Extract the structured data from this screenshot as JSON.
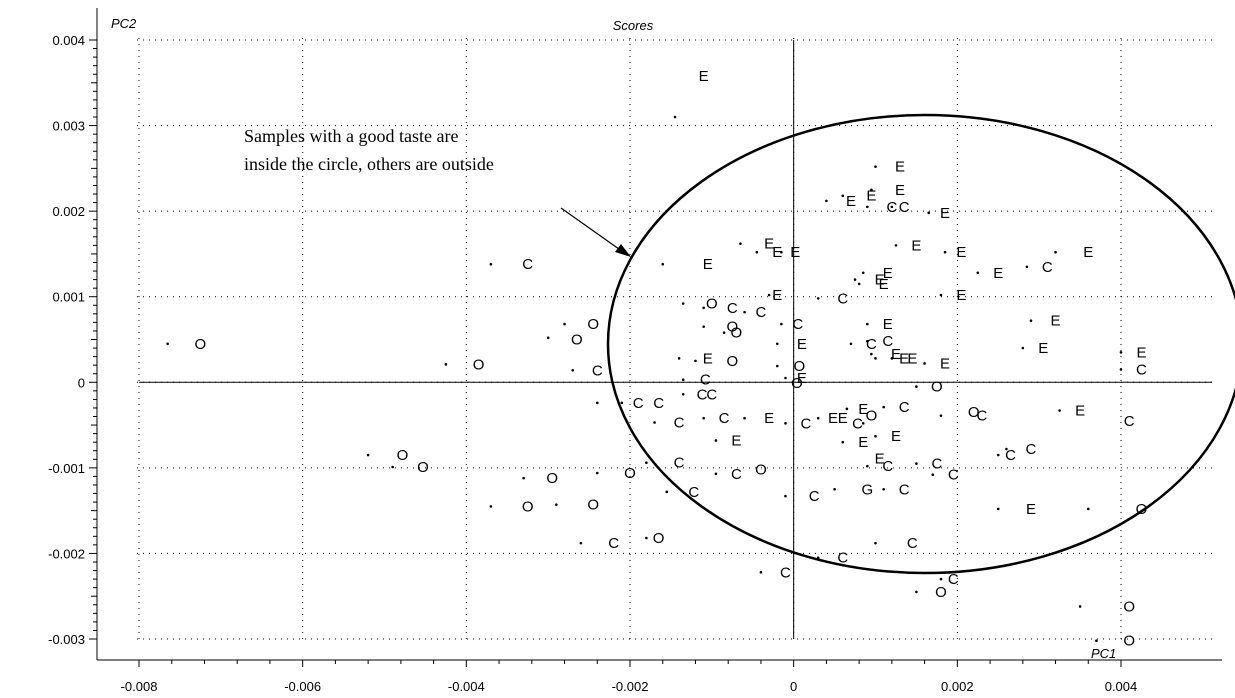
{
  "chart_data": {
    "type": "scatter",
    "title": "Scores",
    "xlabel": "PC1",
    "ylabel": "PC2",
    "xlim": [
      -0.0085,
      0.0045
    ],
    "ylim": [
      -0.0031,
      0.0041
    ],
    "xticks": [
      -0.008,
      -0.006,
      -0.004,
      -0.002,
      0,
      0.002,
      0.004
    ],
    "xtick_labels": [
      "-0.008",
      "-0.006",
      "-0.004",
      "-0.002",
      "0",
      "0.002",
      "0.004"
    ],
    "yticks": [
      -0.003,
      -0.002,
      -0.001,
      0,
      0.001,
      0.002,
      0.003,
      0.004
    ],
    "ytick_labels": [
      "-0.003",
      "-0.002",
      "-0.001",
      "0",
      "0.001",
      "0.002",
      "0.003",
      "0.004"
    ],
    "grid": "dotted",
    "annotation": {
      "lines": [
        "Samples with a good taste are",
        "inside the circle, others are outside"
      ]
    },
    "points": [
      {
        "x": -0.00725,
        "y": 0.00045,
        "label": "O"
      },
      {
        "x": -0.00385,
        "y": 0.00021,
        "label": "O"
      },
      {
        "x": -0.00325,
        "y": 0.00138,
        "label": "C"
      },
      {
        "x": -0.00265,
        "y": 0.0005,
        "label": "O"
      },
      {
        "x": -0.00245,
        "y": 0.00068,
        "label": "O"
      },
      {
        "x": -0.0024,
        "y": 0.00014,
        "label": "C"
      },
      {
        "x": -0.00478,
        "y": -0.00085,
        "label": "O"
      },
      {
        "x": -0.00453,
        "y": -0.00099,
        "label": "O"
      },
      {
        "x": -0.00295,
        "y": -0.00112,
        "label": "O"
      },
      {
        "x": -0.00325,
        "y": -0.00145,
        "label": "O"
      },
      {
        "x": -0.00245,
        "y": -0.00143,
        "label": "O"
      },
      {
        "x": -0.0022,
        "y": -0.00188,
        "label": "C"
      },
      {
        "x": -0.00165,
        "y": -0.00182,
        "label": "O"
      },
      {
        "x": -0.002,
        "y": -0.00106,
        "label": "O"
      },
      {
        "x": -0.0014,
        "y": -0.00094,
        "label": "C"
      },
      {
        "x": -0.00122,
        "y": -0.00128,
        "label": "C"
      },
      {
        "x": -0.0019,
        "y": -0.00024,
        "label": "C"
      },
      {
        "x": -0.00165,
        "y": -0.00024,
        "label": "C"
      },
      {
        "x": -0.0014,
        "y": -0.00047,
        "label": "C"
      },
      {
        "x": -0.00112,
        "y": -0.00014,
        "label": "C"
      },
      {
        "x": -0.001,
        "y": -0.00014,
        "label": "C"
      },
      {
        "x": -0.00105,
        "y": 0.00028,
        "label": "E"
      },
      {
        "x": -0.00075,
        "y": 0.00025,
        "label": "O"
      },
      {
        "x": -0.00108,
        "y": 3e-05,
        "label": "C"
      },
      {
        "x": -0.001,
        "y": 0.00092,
        "label": "O"
      },
      {
        "x": -0.00075,
        "y": 0.00087,
        "label": "C"
      },
      {
        "x": -0.00075,
        "y": 0.00065,
        "label": "O"
      },
      {
        "x": -0.0007,
        "y": 0.00058,
        "label": "O"
      },
      {
        "x": -0.0004,
        "y": 0.00082,
        "label": "C"
      },
      {
        "x": -0.0002,
        "y": 0.00102,
        "label": "E"
      },
      {
        "x": 5e-05,
        "y": 0.00068,
        "label": "C"
      },
      {
        "x": 0.0006,
        "y": 0.00098,
        "label": "C"
      },
      {
        "x": -0.0011,
        "y": 0.00358,
        "label": "E"
      },
      {
        "x": -0.00105,
        "y": 0.00138,
        "label": "E"
      },
      {
        "x": -0.0003,
        "y": 0.00162,
        "label": "E"
      },
      {
        "x": -0.0002,
        "y": 0.00152,
        "label": "E"
      },
      {
        "x": 2e-05,
        "y": 0.00152,
        "label": "E"
      },
      {
        "x": 0.0013,
        "y": 0.00252,
        "label": "E"
      },
      {
        "x": 0.00095,
        "y": 0.00218,
        "label": "E"
      },
      {
        "x": 0.0013,
        "y": 0.00225,
        "label": "E"
      },
      {
        "x": 0.0007,
        "y": 0.00212,
        "label": "E"
      },
      {
        "x": 0.0012,
        "y": 0.00205,
        "label": "C"
      },
      {
        "x": 0.00135,
        "y": 0.00205,
        "label": "C"
      },
      {
        "x": 0.00185,
        "y": 0.00198,
        "label": "E"
      },
      {
        "x": 0.0015,
        "y": 0.0016,
        "label": "E"
      },
      {
        "x": 0.00205,
        "y": 0.00152,
        "label": "E"
      },
      {
        "x": 0.0025,
        "y": 0.00128,
        "label": "E"
      },
      {
        "x": 0.0031,
        "y": 0.00135,
        "label": "C"
      },
      {
        "x": 0.0036,
        "y": 0.00152,
        "label": "E"
      },
      {
        "x": 0.00115,
        "y": 0.00128,
        "label": "E"
      },
      {
        "x": 0.00105,
        "y": 0.0012,
        "label": "E"
      },
      {
        "x": 0.0011,
        "y": 0.00115,
        "label": "E"
      },
      {
        "x": 0.00205,
        "y": 0.00102,
        "label": "E"
      },
      {
        "x": 0.00115,
        "y": 0.00068,
        "label": "E"
      },
      {
        "x": 0.00115,
        "y": 0.00048,
        "label": "C"
      },
      {
        "x": 0.00125,
        "y": 0.00033,
        "label": "E"
      },
      {
        "x": 0.00135,
        "y": 0.00028,
        "label": "E"
      },
      {
        "x": 0.00145,
        "y": 0.00028,
        "label": "E"
      },
      {
        "x": 0.00185,
        "y": 0.00022,
        "label": "E"
      },
      {
        "x": 0.0032,
        "y": 0.00072,
        "label": "E"
      },
      {
        "x": 0.00305,
        "y": 0.0004,
        "label": "E"
      },
      {
        "x": 0.00095,
        "y": 0.00045,
        "label": "C"
      },
      {
        "x": 0.0001,
        "y": 0.00045,
        "label": "E"
      },
      {
        "x": 7e-05,
        "y": 0.00019,
        "label": "O"
      },
      {
        "x": 0.0001,
        "y": 5e-05,
        "label": "E"
      },
      {
        "x": 4e-05,
        "y": -1e-05,
        "label": "O"
      },
      {
        "x": 0.00425,
        "y": 0.00035,
        "label": "E"
      },
      {
        "x": 0.00425,
        "y": 0.00015,
        "label": "C"
      },
      {
        "x": 0.00175,
        "y": -5e-05,
        "label": "O"
      },
      {
        "x": -0.00085,
        "y": -0.00042,
        "label": "C"
      },
      {
        "x": -0.0003,
        "y": -0.00042,
        "label": "E"
      },
      {
        "x": -0.0007,
        "y": -0.00068,
        "label": "E"
      },
      {
        "x": 0.00015,
        "y": -0.00048,
        "label": "C"
      },
      {
        "x": 0.00048,
        "y": -0.00042,
        "label": "E"
      },
      {
        "x": 0.0006,
        "y": -0.00042,
        "label": "E"
      },
      {
        "x": 0.00078,
        "y": -0.00048,
        "label": "C"
      },
      {
        "x": 0.00085,
        "y": -0.00031,
        "label": "E"
      },
      {
        "x": 0.00095,
        "y": -0.00039,
        "label": "O"
      },
      {
        "x": 0.00135,
        "y": -0.00029,
        "label": "C"
      },
      {
        "x": 0.00085,
        "y": -0.0007,
        "label": "E"
      },
      {
        "x": 0.00125,
        "y": -0.00063,
        "label": "E"
      },
      {
        "x": 0.00105,
        "y": -0.00089,
        "label": "E"
      },
      {
        "x": 0.00115,
        "y": -0.00098,
        "label": "C"
      },
      {
        "x": 0.00175,
        "y": -0.00095,
        "label": "C"
      },
      {
        "x": 0.00195,
        "y": -0.00108,
        "label": "C"
      },
      {
        "x": 0.00135,
        "y": -0.00125,
        "label": "C"
      },
      {
        "x": 0.0009,
        "y": -0.00125,
        "label": "G"
      },
      {
        "x": 0.00025,
        "y": -0.00133,
        "label": "C"
      },
      {
        "x": -0.0007,
        "y": -0.00107,
        "label": "C"
      },
      {
        "x": -0.0004,
        "y": -0.00102,
        "label": "O"
      },
      {
        "x": 0.0023,
        "y": -0.00039,
        "label": "C"
      },
      {
        "x": 0.0022,
        "y": -0.00035,
        "label": "O"
      },
      {
        "x": 0.0029,
        "y": -0.00078,
        "label": "C"
      },
      {
        "x": 0.00265,
        "y": -0.00085,
        "label": "C"
      },
      {
        "x": 0.0029,
        "y": -0.00148,
        "label": "E"
      },
      {
        "x": 0.0035,
        "y": -0.00033,
        "label": "E"
      },
      {
        "x": 0.0041,
        "y": -0.00045,
        "label": "C"
      },
      {
        "x": 0.00425,
        "y": -0.00148,
        "label": "O"
      },
      {
        "x": 0.00145,
        "y": -0.00188,
        "label": "C"
      },
      {
        "x": 0.0006,
        "y": -0.00205,
        "label": "C"
      },
      {
        "x": -0.0001,
        "y": -0.00222,
        "label": "C"
      },
      {
        "x": 0.00195,
        "y": -0.0023,
        "label": "C"
      },
      {
        "x": 0.0018,
        "y": -0.00245,
        "label": "O"
      },
      {
        "x": 0.0041,
        "y": -0.00262,
        "label": "O"
      },
      {
        "x": 0.0041,
        "y": -0.00302,
        "label": "O"
      }
    ],
    "loading_points": [
      {
        "x": -0.00765,
        "y": 0.00045
      },
      {
        "x": -0.00425,
        "y": 0.00021
      },
      {
        "x": -0.0037,
        "y": 0.00138
      },
      {
        "x": -0.003,
        "y": 0.00052
      },
      {
        "x": -0.0028,
        "y": 0.00068
      },
      {
        "x": -0.0027,
        "y": 0.00014
      },
      {
        "x": -0.0052,
        "y": -0.00085
      },
      {
        "x": -0.0049,
        "y": -0.00099
      },
      {
        "x": -0.0033,
        "y": -0.00112
      },
      {
        "x": -0.0037,
        "y": -0.00145
      },
      {
        "x": -0.0029,
        "y": -0.00143
      },
      {
        "x": -0.0026,
        "y": -0.00188
      },
      {
        "x": -0.0018,
        "y": -0.00182
      },
      {
        "x": -0.0024,
        "y": -0.00106
      },
      {
        "x": -0.0018,
        "y": -0.00094
      },
      {
        "x": -0.00155,
        "y": -0.00128
      },
      {
        "x": -0.0024,
        "y": -0.00024
      },
      {
        "x": -0.0021,
        "y": -0.00024
      },
      {
        "x": -0.0017,
        "y": -0.00047
      },
      {
        "x": -0.00135,
        "y": -0.00014
      },
      {
        "x": -0.0014,
        "y": 0.00028
      },
      {
        "x": -0.0012,
        "y": 0.00025
      },
      {
        "x": -0.00135,
        "y": 3e-05
      },
      {
        "x": -0.00135,
        "y": 0.00092
      },
      {
        "x": -0.0011,
        "y": 0.00087
      },
      {
        "x": -0.0011,
        "y": 0.00065
      },
      {
        "x": -0.00085,
        "y": 0.00058
      },
      {
        "x": -0.0006,
        "y": 0.00082
      },
      {
        "x": -0.0003,
        "y": 0.00102
      },
      {
        "x": -0.00015,
        "y": 0.00068
      },
      {
        "x": 0.0003,
        "y": 0.00098
      },
      {
        "x": -0.00145,
        "y": 0.0031
      },
      {
        "x": -0.0016,
        "y": 0.00138
      },
      {
        "x": -0.00065,
        "y": 0.00162
      },
      {
        "x": -0.00045,
        "y": 0.00152
      },
      {
        "x": -0.00015,
        "y": 0.00152
      },
      {
        "x": 0.001,
        "y": 0.00252
      },
      {
        "x": 0.0006,
        "y": 0.00218
      },
      {
        "x": 0.00095,
        "y": 0.00225
      },
      {
        "x": 0.0004,
        "y": 0.00212
      },
      {
        "x": 0.0009,
        "y": 0.00205
      },
      {
        "x": 0.0012,
        "y": 0.00205
      },
      {
        "x": 0.00165,
        "y": 0.00198
      },
      {
        "x": 0.00125,
        "y": 0.0016
      },
      {
        "x": 0.00185,
        "y": 0.00152
      },
      {
        "x": 0.00225,
        "y": 0.00128
      },
      {
        "x": 0.00285,
        "y": 0.00135
      },
      {
        "x": 0.0032,
        "y": 0.00152
      },
      {
        "x": 0.00085,
        "y": 0.00128
      },
      {
        "x": 0.00075,
        "y": 0.0012
      },
      {
        "x": 0.0008,
        "y": 0.00115
      },
      {
        "x": 0.0018,
        "y": 0.00102
      },
      {
        "x": 0.0009,
        "y": 0.00068
      },
      {
        "x": 0.0009,
        "y": 0.00048
      },
      {
        "x": 0.00095,
        "y": 0.00033
      },
      {
        "x": 0.001,
        "y": 0.00028
      },
      {
        "x": 0.0012,
        "y": 0.00028
      },
      {
        "x": 0.0016,
        "y": 0.00022
      },
      {
        "x": 0.0029,
        "y": 0.00072
      },
      {
        "x": 0.0028,
        "y": 0.0004
      },
      {
        "x": 0.0007,
        "y": 0.00045
      },
      {
        "x": -0.0002,
        "y": 0.00045
      },
      {
        "x": -0.0002,
        "y": 0.00019
      },
      {
        "x": -0.0001,
        "y": 5e-05
      },
      {
        "x": 0.004,
        "y": 0.00035
      },
      {
        "x": 0.004,
        "y": 0.00015
      },
      {
        "x": 0.0015,
        "y": -5e-05
      },
      {
        "x": -0.0011,
        "y": -0.00042
      },
      {
        "x": -0.0006,
        "y": -0.00042
      },
      {
        "x": -0.00095,
        "y": -0.00068
      },
      {
        "x": -0.0001,
        "y": -0.00048
      },
      {
        "x": 0.0003,
        "y": -0.00042
      },
      {
        "x": 0.00085,
        "y": -0.00048
      },
      {
        "x": 0.00065,
        "y": -0.00031
      },
      {
        "x": 0.0011,
        "y": -0.00029
      },
      {
        "x": 0.0006,
        "y": -0.0007
      },
      {
        "x": 0.001,
        "y": -0.00063
      },
      {
        "x": 0.0009,
        "y": -0.00098
      },
      {
        "x": 0.0015,
        "y": -0.00095
      },
      {
        "x": 0.0017,
        "y": -0.00108
      },
      {
        "x": 0.0011,
        "y": -0.00125
      },
      {
        "x": 0.0005,
        "y": -0.00125
      },
      {
        "x": -0.0001,
        "y": -0.00133
      },
      {
        "x": -0.00095,
        "y": -0.00107
      },
      {
        "x": 0.0018,
        "y": -0.00039
      },
      {
        "x": 0.0026,
        "y": -0.00078
      },
      {
        "x": 0.0025,
        "y": -0.00085
      },
      {
        "x": 0.0025,
        "y": -0.00148
      },
      {
        "x": 0.00325,
        "y": -0.00033
      },
      {
        "x": 0.0036,
        "y": -0.00148
      },
      {
        "x": 0.001,
        "y": -0.00188
      },
      {
        "x": 0.0003,
        "y": -0.00205
      },
      {
        "x": -0.0004,
        "y": -0.00222
      },
      {
        "x": 0.0018,
        "y": -0.0023
      },
      {
        "x": 0.0015,
        "y": -0.00245
      },
      {
        "x": 0.0035,
        "y": -0.00262
      },
      {
        "x": 0.0037,
        "y": -0.00302
      }
    ]
  }
}
